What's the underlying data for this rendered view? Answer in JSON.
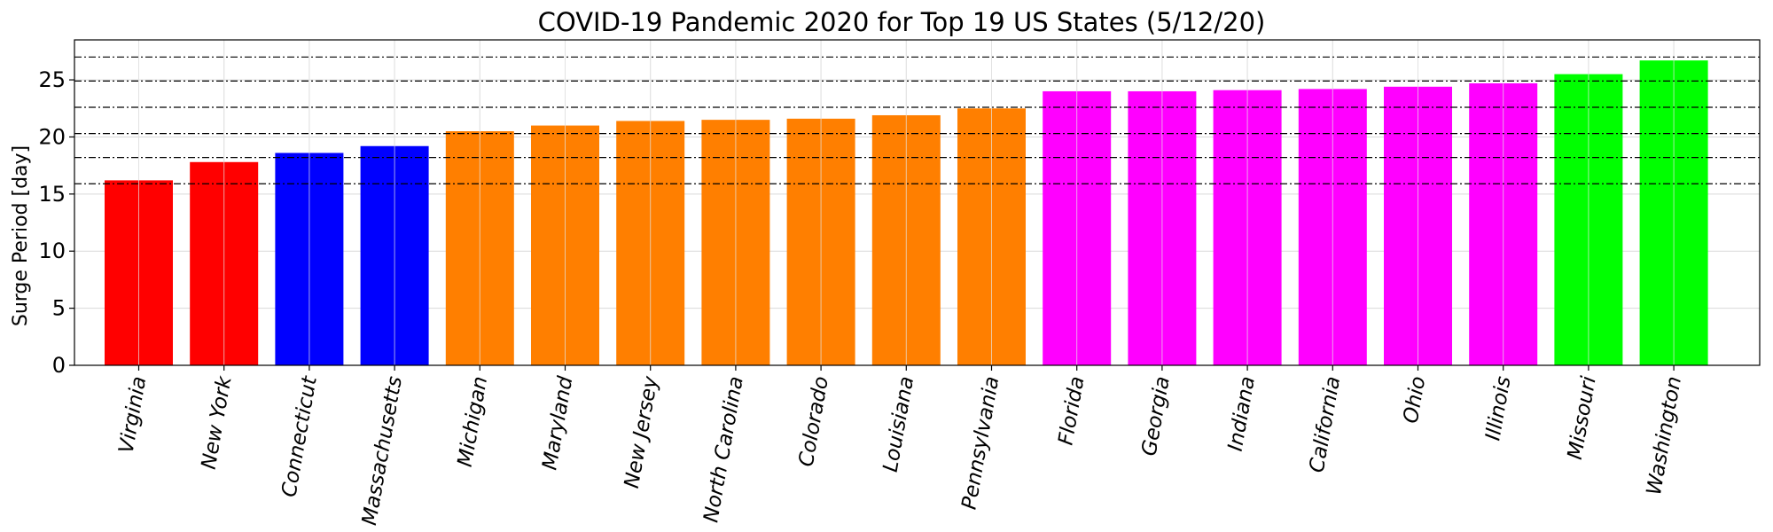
{
  "chart_data": {
    "type": "bar",
    "title": "COVID-19 Pandemic 2020 for Top 19 US States (5/12/20)",
    "xlabel": "",
    "ylabel": "Surge Period [day]",
    "ylim": [
      0,
      28.5
    ],
    "yticks": [
      0,
      5,
      10,
      15,
      20,
      25
    ],
    "grid": true,
    "categories": [
      "Virginia",
      "New York",
      "Connecticut",
      "Massachusetts",
      "Michigan",
      "Maryland",
      "New Jersey",
      "North Carolina",
      "Colorado",
      "Louisiana",
      "Pennsylvania",
      "Florida",
      "Georgia",
      "Indiana",
      "California",
      "Ohio",
      "Illinois",
      "Missouri",
      "Washington"
    ],
    "values": [
      16.2,
      17.8,
      18.6,
      19.2,
      20.5,
      21.0,
      21.4,
      21.5,
      21.6,
      21.9,
      22.5,
      24.0,
      24.0,
      24.1,
      24.2,
      24.4,
      24.7,
      25.5,
      26.7
    ],
    "bar_colors": [
      "#ff0000",
      "#ff0000",
      "#0000ff",
      "#0000ff",
      "#ff7f00",
      "#ff7f00",
      "#ff7f00",
      "#ff7f00",
      "#ff7f00",
      "#ff7f00",
      "#ff7f00",
      "#ff00ff",
      "#ff00ff",
      "#ff00ff",
      "#ff00ff",
      "#ff00ff",
      "#ff00ff",
      "#00ff00",
      "#00ff00"
    ],
    "reference_lines": [
      15.9,
      18.2,
      20.3,
      22.6,
      24.9,
      27.0
    ]
  }
}
